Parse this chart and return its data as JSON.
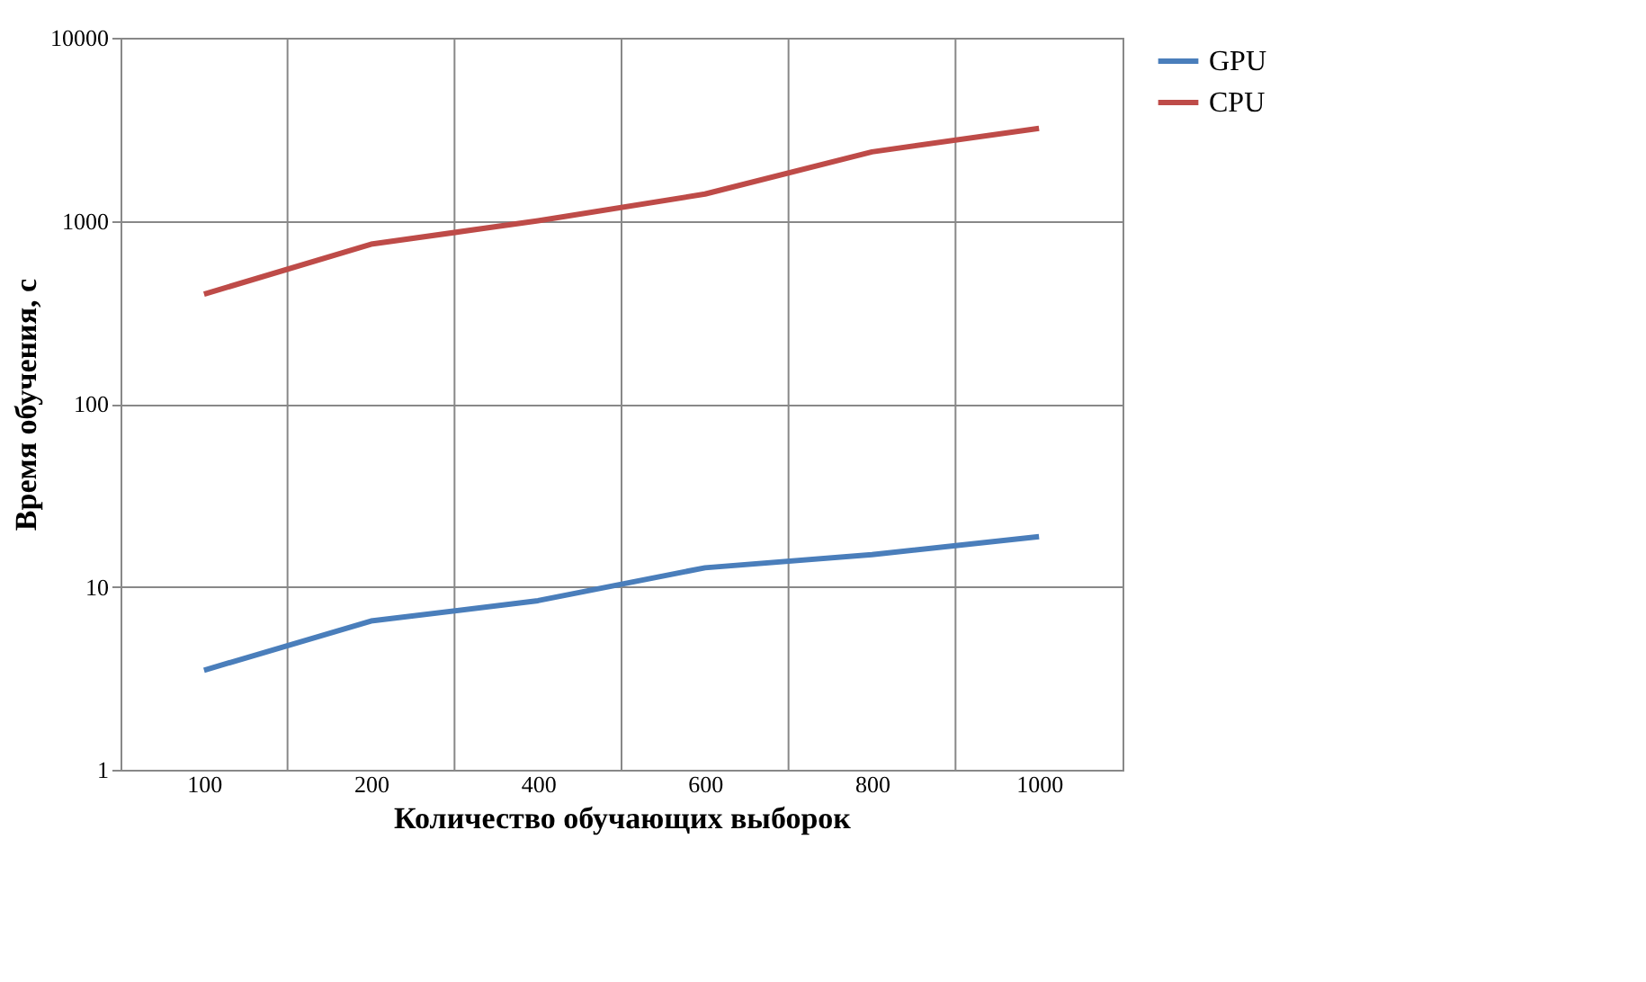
{
  "chart_data": {
    "type": "line",
    "xlabel": "Количество обучающих выборок",
    "ylabel": "Время обучения, с",
    "categories": [
      "100",
      "200",
      "400",
      "600",
      "800",
      "1000"
    ],
    "series": [
      {
        "name": "GPU",
        "color": "#4a7ebb",
        "values": [
          3.5,
          6.5,
          8.4,
          12.7,
          15,
          18.8
        ]
      },
      {
        "name": "CPU",
        "color": "#be4b48",
        "values": [
          397,
          745,
          1000,
          1400,
          2380,
          3200
        ]
      }
    ],
    "log": "y",
    "ylim": [
      1,
      10000
    ],
    "yticks": [
      1,
      10,
      100,
      1000,
      10000
    ],
    "grid": true,
    "legend": "right",
    "marker": "none",
    "line_style": "solid"
  }
}
